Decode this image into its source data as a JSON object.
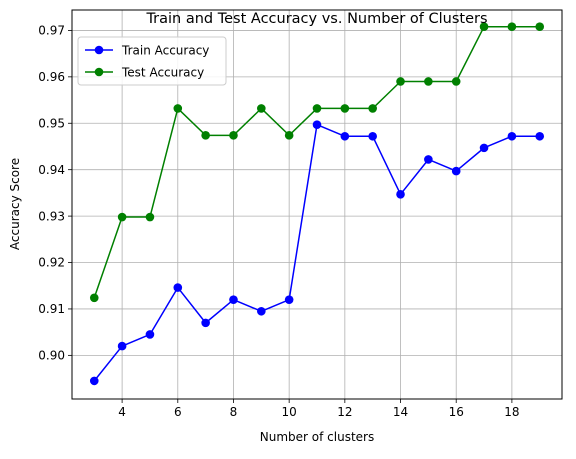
{
  "chart_data": {
    "type": "line",
    "title": "Train and Test Accuracy vs. Number of Clusters",
    "xlabel": "Number of clusters",
    "ylabel": "Accuracy Score",
    "x": [
      3,
      4,
      5,
      6,
      7,
      8,
      9,
      10,
      11,
      12,
      13,
      14,
      15,
      16,
      17,
      18,
      19
    ],
    "xlim": [
      2.2,
      19.8
    ],
    "ylim": [
      0.8906,
      0.9744
    ],
    "xticks": [
      "4",
      "6",
      "8",
      "10",
      "12",
      "14",
      "16",
      "18"
    ],
    "yticks": [
      "0.90",
      "0.91",
      "0.92",
      "0.93",
      "0.94",
      "0.95",
      "0.96",
      "0.97"
    ],
    "grid": true,
    "legend_position": "top-left",
    "series": [
      {
        "name": "Train Accuracy",
        "color": "#0000ff",
        "marker": "circle",
        "values": [
          0.8945,
          0.902,
          0.9045,
          0.9146,
          0.907,
          0.912,
          0.9095,
          0.912,
          0.9497,
          0.9472,
          0.9472,
          0.9347,
          0.9422,
          0.9397,
          0.9447,
          0.9472,
          0.9472
        ]
      },
      {
        "name": "Test Accuracy",
        "color": "#008000",
        "marker": "circle",
        "values": [
          0.9124,
          0.9298,
          0.9298,
          0.9532,
          0.9474,
          0.9474,
          0.9532,
          0.9474,
          0.9532,
          0.9532,
          0.9532,
          0.959,
          0.959,
          0.959,
          0.9708,
          0.9708,
          0.9708
        ]
      }
    ]
  }
}
